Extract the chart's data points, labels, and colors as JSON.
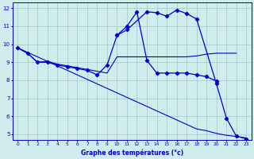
{
  "title": "Graphe des températures (°c)",
  "x_labels": [
    "0",
    "1",
    "2",
    "3",
    "4",
    "5",
    "6",
    "7",
    "8",
    "9",
    "10",
    "11",
    "12",
    "13",
    "14",
    "15",
    "16",
    "17",
    "18",
    "19",
    "20",
    "21",
    "22",
    "23"
  ],
  "ylim": [
    5,
    12
  ],
  "yticks": [
    5,
    6,
    7,
    8,
    9,
    10,
    11,
    12
  ],
  "bg_color": "#d0ecec",
  "line_color": "#0000cc",
  "grid_color": "#a0c8c8",
  "series1_x": [
    0,
    1,
    2,
    3,
    4,
    5,
    6,
    7,
    8,
    9,
    10,
    11,
    12,
    13,
    14,
    15,
    16,
    17,
    18,
    19,
    20
  ],
  "series1_y": [
    9.8,
    9.5,
    9.0,
    9.0,
    8.85,
    8.75,
    8.65,
    8.55,
    8.3,
    8.85,
    10.5,
    11.0,
    11.8,
    9.1,
    8.4,
    8.4,
    8.4,
    8.4,
    8.3,
    8.2,
    7.95
  ],
  "series2_x": [
    0,
    1,
    2,
    3,
    4,
    5,
    6,
    7,
    8,
    9,
    10,
    11,
    12,
    13,
    14,
    15,
    16,
    17,
    18,
    19,
    20,
    21,
    22
  ],
  "series2_y": [
    9.8,
    9.5,
    9.0,
    9.05,
    8.9,
    8.8,
    8.7,
    8.6,
    8.5,
    8.4,
    9.3,
    9.3,
    9.3,
    9.3,
    9.3,
    9.3,
    9.3,
    9.3,
    9.35,
    9.45,
    9.5,
    9.5,
    9.5
  ],
  "series3_x": [
    0,
    1,
    2,
    3,
    4,
    5,
    6,
    7,
    8,
    9,
    10,
    11,
    12,
    13,
    14,
    15,
    16,
    17,
    18,
    19,
    20,
    21,
    22,
    23
  ],
  "series3_y": [
    9.8,
    9.55,
    9.3,
    9.05,
    8.8,
    8.55,
    8.3,
    8.05,
    7.8,
    7.55,
    7.3,
    7.05,
    6.8,
    6.55,
    6.3,
    6.05,
    5.8,
    5.55,
    5.3,
    5.2,
    5.05,
    4.95,
    4.88,
    4.8
  ],
  "series4_x": [
    10,
    11,
    13,
    14,
    15,
    16,
    17,
    18,
    20,
    21,
    22,
    23
  ],
  "series4_y": [
    10.5,
    10.8,
    11.8,
    11.75,
    11.55,
    11.9,
    11.7,
    11.4,
    7.8,
    5.9,
    4.9,
    4.75
  ]
}
